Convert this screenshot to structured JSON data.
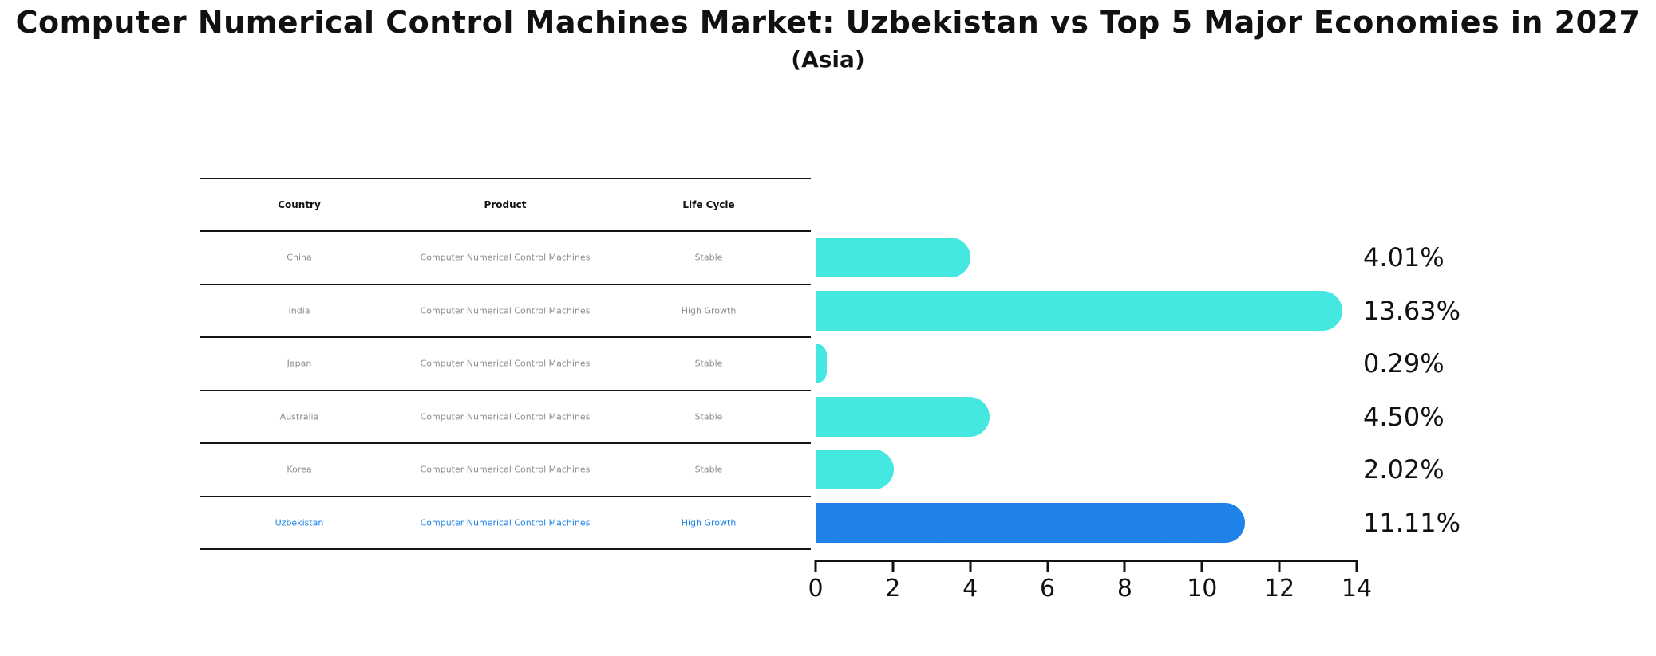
{
  "title": "Computer Numerical Control Machines Market: Uzbekistan vs Top 5 Major Economies in 2027",
  "subtitle": "(Asia)",
  "table": {
    "headers": [
      "Country",
      "Product",
      "Life Cycle"
    ],
    "rows": [
      {
        "country": "China",
        "product": "Computer Numerical Control Machines",
        "life_cycle": "Stable",
        "highlight": false
      },
      {
        "country": "India",
        "product": "Computer Numerical Control Machines",
        "life_cycle": "High Growth",
        "highlight": false
      },
      {
        "country": "Japan",
        "product": "Computer Numerical Control Machines",
        "life_cycle": "Stable",
        "highlight": false
      },
      {
        "country": "Australia",
        "product": "Computer Numerical Control Machines",
        "life_cycle": "Stable",
        "highlight": false
      },
      {
        "country": "Korea",
        "product": "Computer Numerical Control Machines",
        "life_cycle": "Stable",
        "highlight": false
      },
      {
        "country": "Uzbekistan",
        "product": "Computer Numerical Control Machines",
        "life_cycle": "High Growth",
        "highlight": true
      }
    ]
  },
  "chart_data": {
    "type": "bar",
    "orientation": "horizontal",
    "title": "Computer Numerical Control Machines Market: Uzbekistan vs Top 5 Major Economies in 2027 (Asia)",
    "categories": [
      "China",
      "India",
      "Japan",
      "Australia",
      "Korea",
      "Uzbekistan"
    ],
    "values": [
      4.01,
      13.63,
      0.29,
      4.5,
      2.02,
      11.11
    ],
    "labels": [
      "4.01%",
      "13.63%",
      "0.29%",
      "4.50%",
      "2.02%",
      "11.11%"
    ],
    "xlim": [
      0,
      14
    ],
    "xticks": [
      0,
      2,
      4,
      6,
      8,
      10,
      12,
      14
    ],
    "grid": false,
    "legend": false,
    "highlight_index": 5,
    "bar_colors": [
      "#45E8E0",
      "#45E8E0",
      "#45E8E0",
      "#45E8E0",
      "#45E8E0",
      "#1E82E8"
    ]
  },
  "colors": {
    "bar_default": "#45E8E0",
    "bar_highlight": "#1E82E8",
    "highlight_text": "#1E82E8",
    "row_text": "#8C8C8C",
    "axis": "#111111"
  }
}
